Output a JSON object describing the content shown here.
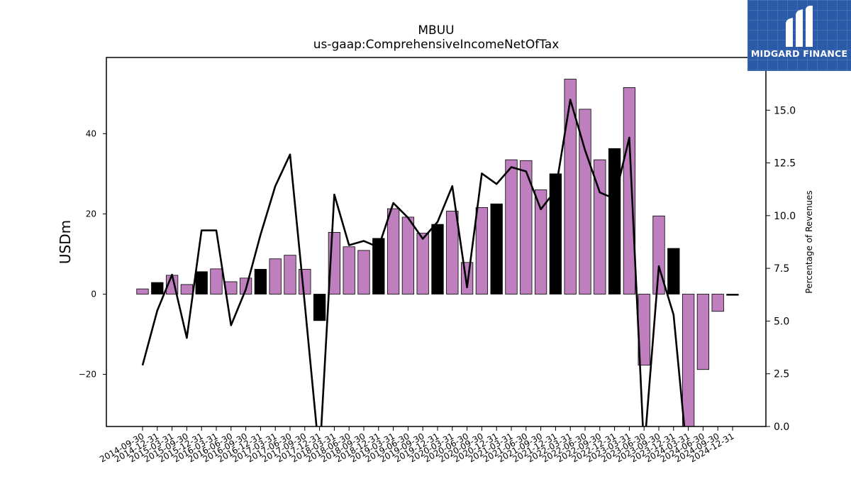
{
  "brand": {
    "name": "MIDGARD FINANCE"
  },
  "chart_data": {
    "type": "bar",
    "title": "MBUU",
    "subtitle": "us-gaap:ComprehensiveIncomeNetOfTax",
    "ylabel": "USDm",
    "y2label": "Percentage of Revenues",
    "ylim": [
      -33.0,
      59.0
    ],
    "y2lim": [
      0.0,
      17.5
    ],
    "yticks": [
      -20,
      0,
      20,
      40
    ],
    "ytick_labels": [
      "−20",
      "0",
      "20",
      "40"
    ],
    "y2ticks": [
      0.0,
      2.5,
      5.0,
      7.5,
      10.0,
      12.5,
      15.0
    ],
    "y2tick_labels": [
      "0.0",
      "2.5",
      "5.0",
      "7.5",
      "10.0",
      "12.5",
      "15.0"
    ],
    "grid": false,
    "colors": {
      "bar_default": "#bf7fbf",
      "bar_highlight": "#000000",
      "line": "#000000"
    },
    "categories": [
      "2014-09-30",
      "2014-12-31",
      "2015-03-31",
      "2015-09-30",
      "2015-12-31",
      "2016-03-31",
      "2016-06-30",
      "2016-09-30",
      "2016-12-31",
      "2017-03-31",
      "2017-06-30",
      "2017-09-30",
      "2017-12-31",
      "2018-03-31",
      "2018-06-30",
      "2018-09-30",
      "2018-12-31",
      "2019-03-31",
      "2019-06-30",
      "2019-09-30",
      "2019-12-31",
      "2020-03-31",
      "2020-06-30",
      "2020-09-30",
      "2020-12-31",
      "2021-03-31",
      "2021-06-30",
      "2021-09-30",
      "2021-12-31",
      "2022-03-31",
      "2022-06-30",
      "2022-09-30",
      "2022-12-31",
      "2023-03-31",
      "2023-06-30",
      "2023-09-30",
      "2023-12-31",
      "2024-03-31",
      "2024-06-30",
      "2024-09-30",
      "2024-12-31"
    ],
    "series": [
      {
        "values": [
          1.3,
          2.9,
          4.7,
          2.4,
          5.6,
          6.3,
          3.1,
          4.0,
          6.2,
          8.8,
          9.7,
          6.2,
          -6.6,
          15.4,
          11.8,
          10.9,
          13.9,
          21.3,
          19.2,
          15.2,
          17.4,
          20.7,
          7.9,
          21.6,
          22.5,
          33.5,
          33.3,
          26.0,
          30.0,
          53.6,
          46.1,
          33.5,
          36.3,
          51.5,
          -17.7,
          19.5,
          11.4,
          -40.0,
          -18.8,
          -4.3,
          -0.3
        ],
        "highlight": [
          false,
          true,
          false,
          false,
          true,
          false,
          false,
          false,
          true,
          false,
          false,
          false,
          true,
          false,
          false,
          false,
          true,
          false,
          false,
          false,
          true,
          false,
          false,
          false,
          true,
          false,
          false,
          false,
          true,
          false,
          false,
          false,
          true,
          false,
          false,
          false,
          true,
          false,
          false,
          false,
          true
        ]
      },
      {
        "values": [
          2.9,
          5.5,
          7.2,
          4.2,
          9.3,
          9.3,
          4.8,
          6.5,
          9.1,
          11.4,
          12.9,
          5.8,
          -1.5,
          11.0,
          8.6,
          8.8,
          8.5,
          10.6,
          9.9,
          8.9,
          9.7,
          11.4,
          6.6,
          12.0,
          11.5,
          12.3,
          12.1,
          10.3,
          11.2,
          15.5,
          13.1,
          11.1,
          10.8,
          13.7,
          -1.2,
          7.6,
          5.3,
          -2.0,
          null,
          null,
          null
        ]
      }
    ]
  }
}
